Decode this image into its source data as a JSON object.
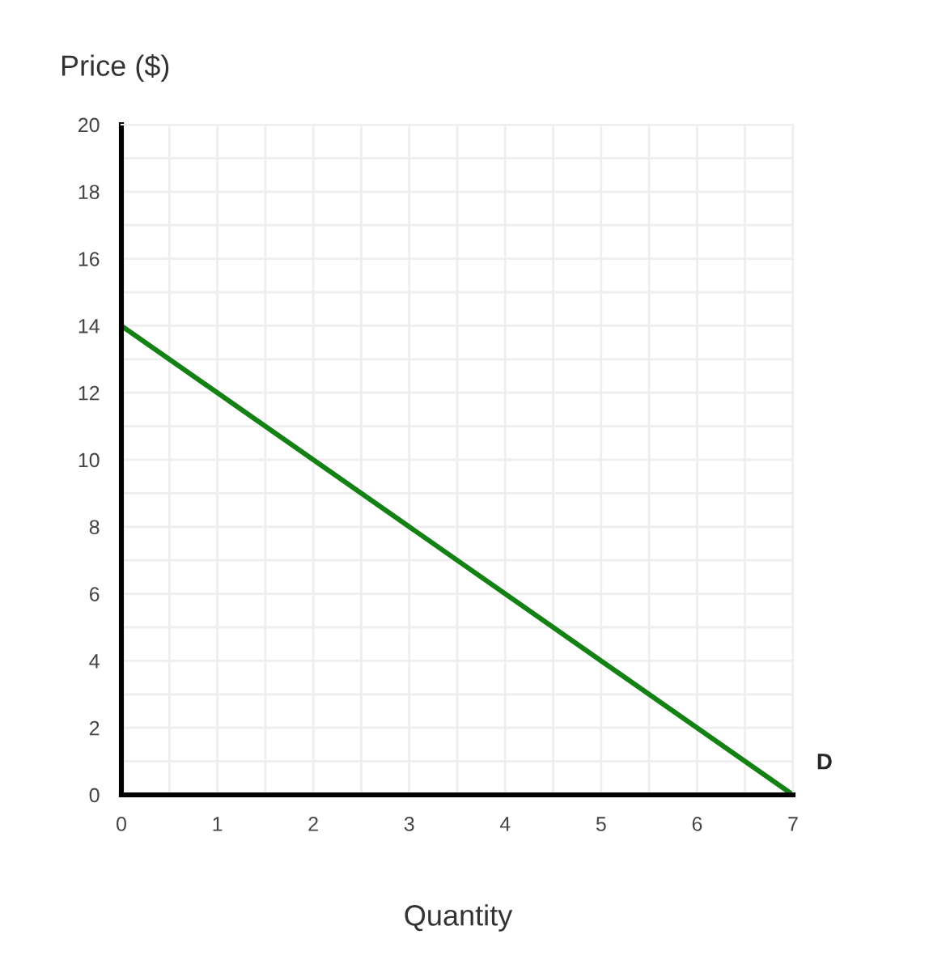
{
  "chart_data": {
    "type": "line",
    "xlabel": "Quantity",
    "ylabel": "Price ($)",
    "x": [
      0,
      7
    ],
    "series": [
      {
        "color": "#138113",
        "values": [
          14,
          0
        ]
      }
    ],
    "xlim": [
      0,
      7
    ],
    "xticks": [
      0,
      1,
      2,
      3,
      4,
      5,
      6,
      7
    ],
    "ylim": [
      0,
      20
    ],
    "yticks": [
      0,
      2,
      4,
      6,
      8,
      10,
      12,
      14,
      16,
      18,
      20
    ],
    "grid": true,
    "marker": "none",
    "line_style": "solid",
    "annotations": [
      {
        "text": "D",
        "x": 7,
        "y": 0
      }
    ]
  }
}
